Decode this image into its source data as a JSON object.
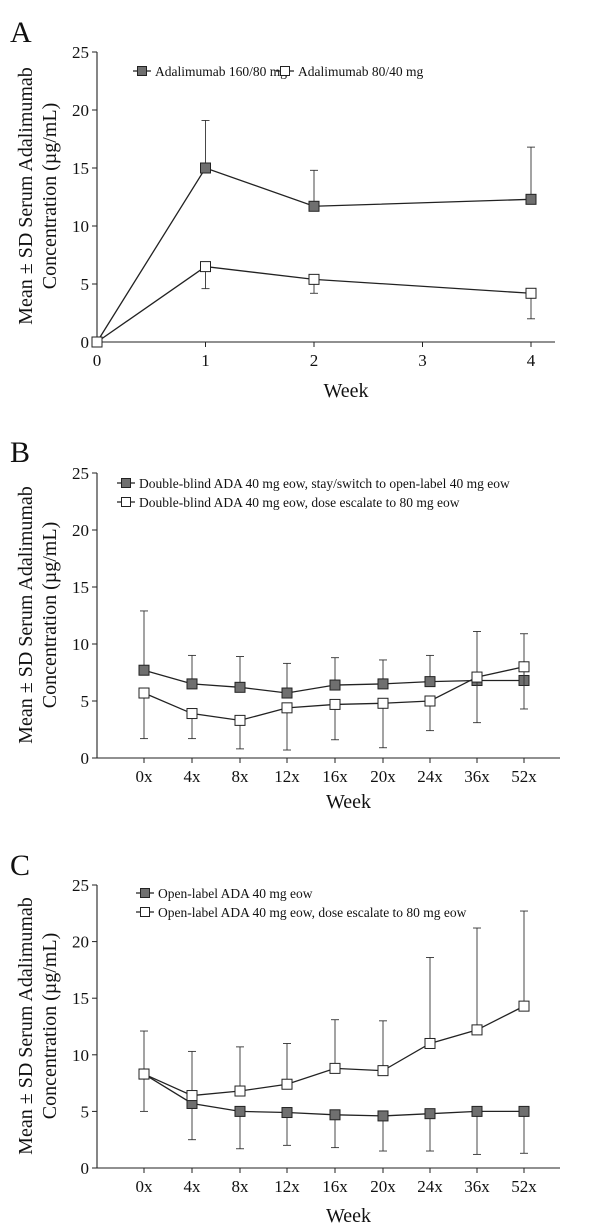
{
  "chart_data": [
    {
      "type": "line",
      "panel_label": "A",
      "xlabel": "Week",
      "ylabel": "Mean ± SD Serum Adalimumab Concentration (µg/mL)",
      "ylabel_lines": [
        "Mean ± SD Serum Adalimumab",
        "Concentration (µg/mL)"
      ],
      "x_scale": "linear",
      "xlim": [
        0,
        5
      ],
      "ylim": [
        0,
        25
      ],
      "x_ticks": [
        0,
        1,
        2,
        3,
        4
      ],
      "x_tick_labels": [
        "0",
        "1",
        "2",
        "3",
        "4"
      ],
      "y_ticks": [
        0,
        5,
        10,
        15,
        20,
        25
      ],
      "grid": false,
      "legend_position": "top",
      "series": [
        {
          "name": "Adalimumab 160/80 mg",
          "marker": "filled-square",
          "x": [
            0,
            1,
            2,
            4
          ],
          "values": [
            0,
            15.0,
            11.7,
            12.3
          ],
          "error_plus": [
            0,
            4.1,
            3.1,
            4.5
          ]
        },
        {
          "name": "Adalimumab 80/40 mg",
          "marker": "open-square",
          "x": [
            0,
            1,
            2,
            4
          ],
          "values": [
            0,
            6.5,
            5.4,
            4.2
          ],
          "error_minus": [
            0,
            1.9,
            1.2,
            2.2
          ]
        }
      ]
    },
    {
      "type": "line",
      "panel_label": "B",
      "xlabel": "Week",
      "ylabel": "Mean ± SD Serum Adalimumab Concentration (µg/mL)",
      "ylabel_lines": [
        "Mean ± SD Serum Adalimumab",
        "Concentration (µg/mL)"
      ],
      "x_scale": "categorical",
      "categories": [
        "0x",
        "4x",
        "8x",
        "12x",
        "16x",
        "20x",
        "24x",
        "36x",
        "52x"
      ],
      "ylim": [
        0,
        25
      ],
      "y_ticks": [
        0,
        5,
        10,
        15,
        20,
        25
      ],
      "grid": false,
      "legend_position": "top-left",
      "series": [
        {
          "name": "Double-blind ADA 40 mg eow, stay/switch to open-label 40 mg eow",
          "marker": "filled-square",
          "values": [
            7.7,
            6.5,
            6.2,
            5.7,
            6.4,
            6.5,
            6.7,
            6.8,
            6.8
          ],
          "error_plus": [
            5.2,
            2.5,
            2.7,
            2.6,
            2.4,
            2.1,
            2.3,
            4.3,
            4.1
          ]
        },
        {
          "name": "Double-blind ADA 40 mg eow, dose escalate to 80 mg eow",
          "marker": "open-square",
          "values": [
            5.7,
            3.9,
            3.3,
            4.4,
            4.7,
            4.8,
            5.0,
            7.1,
            8.0
          ],
          "error_minus": [
            4.0,
            2.2,
            2.5,
            3.7,
            3.1,
            3.9,
            2.6,
            4.0,
            3.7
          ]
        }
      ]
    },
    {
      "type": "line",
      "panel_label": "C",
      "xlabel": "Week",
      "ylabel": "Mean ± SD Serum Adalimumab Concentration (µg/mL)",
      "ylabel_lines": [
        "Mean ± SD Serum Adalimumab",
        "Concentration (µg/mL)"
      ],
      "x_scale": "categorical",
      "categories": [
        "0x",
        "4x",
        "8x",
        "12x",
        "16x",
        "20x",
        "24x",
        "36x",
        "52x"
      ],
      "ylim": [
        0,
        25
      ],
      "y_ticks": [
        0,
        5,
        10,
        15,
        20,
        25
      ],
      "grid": false,
      "legend_position": "top-left",
      "series": [
        {
          "name": "Open-label ADA 40 mg eow",
          "marker": "filled-square",
          "values": [
            8.3,
            5.7,
            5.0,
            4.9,
            4.7,
            4.6,
            4.8,
            5.0,
            5.0
          ],
          "error_minus": [
            3.3,
            3.2,
            3.3,
            2.9,
            2.9,
            3.1,
            3.3,
            3.8,
            3.7
          ]
        },
        {
          "name": "Open-label ADA 40 mg eow, dose escalate to 80 mg eow",
          "marker": "open-square",
          "values": [
            8.3,
            6.4,
            6.8,
            7.4,
            8.8,
            8.6,
            11.0,
            12.2,
            14.3
          ],
          "error_plus": [
            3.8,
            3.9,
            3.9,
            3.6,
            4.3,
            4.4,
            7.6,
            9.0,
            8.4
          ]
        }
      ]
    }
  ]
}
